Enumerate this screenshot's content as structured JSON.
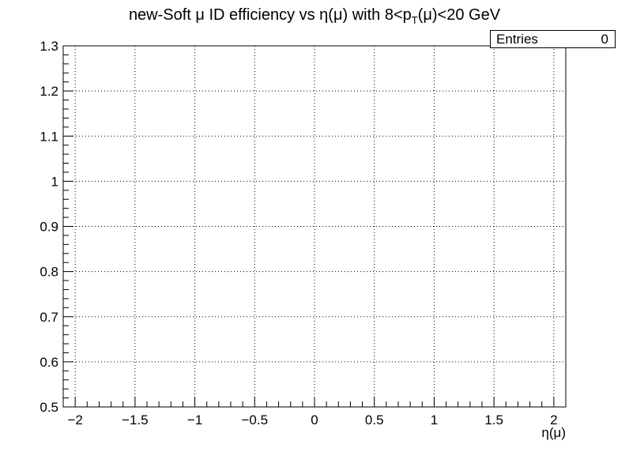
{
  "chart_data": {
    "type": "line",
    "title_parts": {
      "main": "new-Soft μ ID efficiency vs η(μ) with 8<p",
      "sub": "T",
      "tail": "(μ)<20 GeV"
    },
    "xlabel": "η(μ)",
    "ylabel": "",
    "xlim": [
      -2.1,
      2.1
    ],
    "ylim": [
      0.5,
      1.3
    ],
    "x_ticks": [
      -2,
      -1.5,
      -1,
      -0.5,
      0,
      0.5,
      1,
      1.5,
      2
    ],
    "x_tick_labels": [
      "−2",
      "−1.5",
      "−1",
      "−0.5",
      "0",
      "0.5",
      "1",
      "1.5",
      "2"
    ],
    "y_ticks": [
      0.5,
      0.6,
      0.7,
      0.8,
      0.9,
      1,
      1.1,
      1.2,
      1.3
    ],
    "y_tick_labels": [
      "0.5",
      "0.6",
      "0.7",
      "0.8",
      "0.9",
      "1",
      "1.1",
      "1.2",
      "1.3"
    ],
    "grid": true,
    "series": [],
    "stats_box": {
      "label": "Entries",
      "value": "0"
    }
  }
}
